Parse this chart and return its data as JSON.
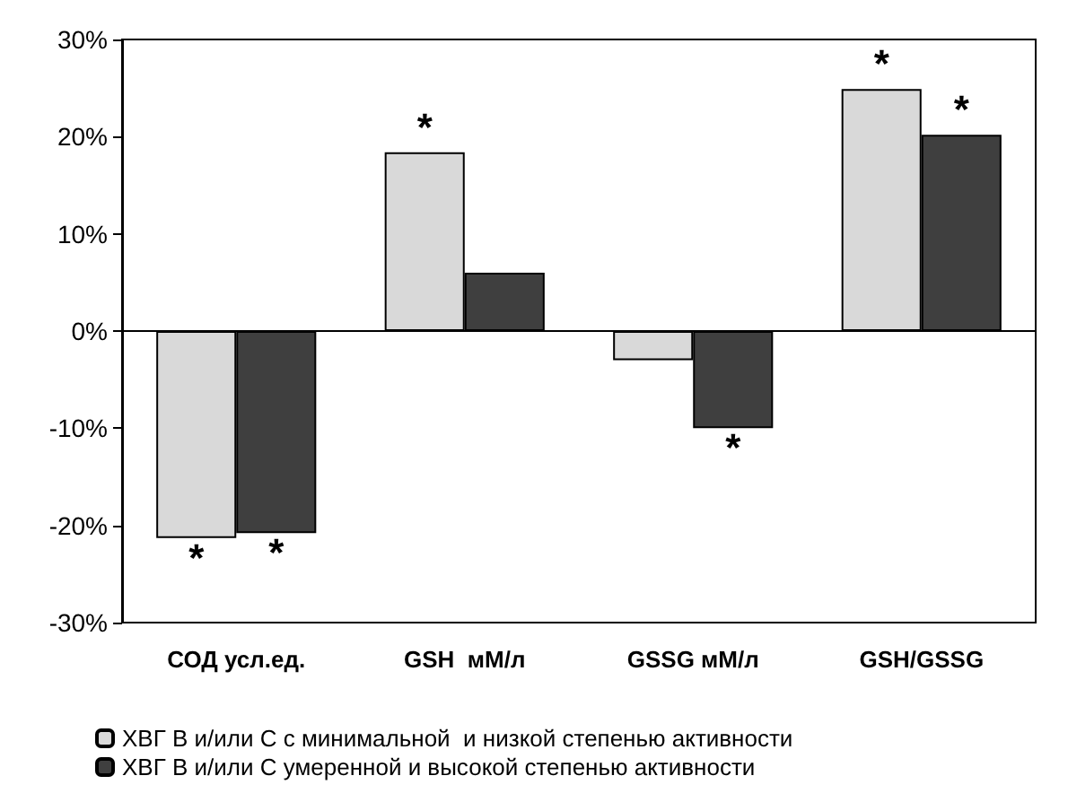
{
  "chart_data": {
    "type": "bar",
    "categories": [
      "СОД усл.ед.",
      "GSH  мМ/л",
      "GSSG мМ/л",
      "GSH/GSSG"
    ],
    "series": [
      {
        "name": "ХВГ В и/или С с минимальной  и низкой степенью активности",
        "color": "#d9d9d9",
        "values": [
          -21.3,
          18.4,
          -3,
          24.9
        ]
      },
      {
        "name": "ХВГ В и/или С умеренной и высокой степенью активности",
        "color": "#3f3f3f",
        "values": [
          -20.8,
          6,
          -10,
          20.2
        ]
      }
    ],
    "ylim": [
      -30,
      30
    ],
    "yticks": [
      {
        "value": -30,
        "label": "-30%"
      },
      {
        "value": -20,
        "label": "-20%"
      },
      {
        "value": -10,
        "label": "-10%"
      },
      {
        "value": 0,
        "label": "0%"
      },
      {
        "value": 10,
        "label": "10%"
      },
      {
        "value": 20,
        "label": "20%"
      },
      {
        "value": 30,
        "label": "30%"
      }
    ],
    "annotations": [
      {
        "text": "*",
        "x": "СОД усл.ед.",
        "y": -21.3
      },
      {
        "text": "*",
        "x": "СОД усл.ед.",
        "y": -20.8
      },
      {
        "text": "*",
        "x": "GSH  мМ/л",
        "y": 18.4
      },
      {
        "text": "*",
        "x": "GSSG мМ/л",
        "y": -10
      },
      {
        "text": "*",
        "x": "GSH/GSSG",
        "y": 24.9
      },
      {
        "text": "*",
        "x": "GSH/GSSG",
        "y": 20.2
      }
    ],
    "legend": "bottom left"
  }
}
